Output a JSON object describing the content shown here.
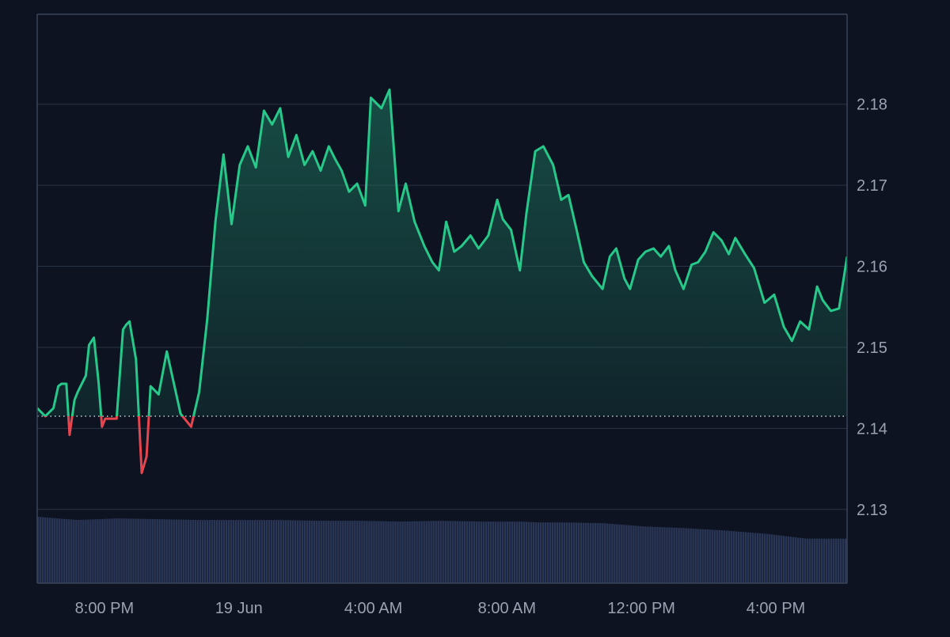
{
  "colors": {
    "background": "#0d1320",
    "grid": "#2b3444",
    "axis_border": "#3a4456",
    "tick_label": "#9aa3b2",
    "line_up": "#26c98a",
    "line_down": "#e5454f",
    "area_fill": "#1c6b57",
    "volume": "#2a3656",
    "baseline": "#c9ced8"
  },
  "chart_data": {
    "type": "area",
    "grid": true,
    "baseline_value": 2.1415,
    "ylim": [
      2.1209,
      2.1911
    ],
    "xlim": [
      0,
      100
    ],
    "y_ticks": [
      2.13,
      2.14,
      2.15,
      2.16,
      2.17,
      2.18
    ],
    "y_tick_labels": [
      "2.13",
      "2.14",
      "2.15",
      "2.16",
      "2.17",
      "2.18"
    ],
    "x_ticks": [
      8.3,
      24.9,
      41.5,
      58.0,
      74.6,
      91.2
    ],
    "x_tick_labels": [
      "8:00 PM",
      "19 Jun",
      "4:00 AM",
      "8:00 AM",
      "12:00 PM",
      "4:00 PM"
    ],
    "price": {
      "x": [
        0,
        1,
        2,
        2.6,
        3,
        3.6,
        4,
        4.6,
        5,
        6,
        6.4,
        7,
        7.6,
        8,
        8.4,
        9,
        9.8,
        10.6,
        11,
        11.4,
        12.2,
        12.9,
        13.5,
        14,
        15,
        16,
        17.7,
        19,
        20,
        21,
        22,
        23,
        24,
        25,
        26,
        27,
        28,
        29,
        30,
        31,
        32,
        33,
        34,
        35,
        36,
        36.8,
        37.6,
        38.5,
        39.5,
        40.5,
        41.2,
        42.5,
        43.5,
        44.6,
        45.5,
        46.6,
        47.8,
        48.8,
        49.6,
        50.5,
        51.5,
        52.4,
        53.5,
        54.5,
        55.7,
        56.8,
        57.5,
        58.5,
        59.6,
        60.4,
        61.5,
        62.5,
        63.7,
        64.7,
        65.6,
        66.6,
        67.5,
        68.5,
        69.8,
        70.7,
        71.5,
        72.5,
        73.2,
        74.2,
        75.1,
        76.1,
        77,
        78,
        78.8,
        79.8,
        80.8,
        81.6,
        82.5,
        83.5,
        84.5,
        85.4,
        86.2,
        87.4,
        88.5,
        89.8,
        91,
        92.2,
        93.2,
        94.2,
        95.3,
        96.3,
        97,
        98,
        99,
        100
      ],
      "y": [
        2.1425,
        2.1415,
        2.1425,
        2.1452,
        2.1455,
        2.1455,
        2.1392,
        2.1435,
        2.1445,
        2.1465,
        2.1503,
        2.1512,
        2.1455,
        2.1402,
        2.1412,
        2.1412,
        2.1412,
        2.1522,
        2.1528,
        2.1532,
        2.1485,
        2.1345,
        2.1365,
        2.1452,
        2.1442,
        2.1495,
        2.1418,
        2.1402,
        2.1445,
        2.1535,
        2.1655,
        2.1738,
        2.1652,
        2.1725,
        2.1748,
        2.1722,
        2.1792,
        2.1775,
        2.1795,
        2.1735,
        2.1762,
        2.1725,
        2.1742,
        2.1718,
        2.1748,
        2.1732,
        2.1718,
        2.1692,
        2.1702,
        2.1675,
        2.1808,
        2.1795,
        2.1818,
        2.1668,
        2.1702,
        2.1655,
        2.1625,
        2.1605,
        2.1595,
        2.1655,
        2.1618,
        2.1625,
        2.1638,
        2.1622,
        2.1638,
        2.1682,
        2.1658,
        2.1645,
        2.1595,
        2.1665,
        2.1742,
        2.1748,
        2.1725,
        2.1682,
        2.1688,
        2.1645,
        2.1605,
        2.1588,
        2.1572,
        2.1612,
        2.1622,
        2.1585,
        2.1572,
        2.1608,
        2.1618,
        2.1622,
        2.1612,
        2.1625,
        2.1595,
        2.1572,
        2.1602,
        2.1605,
        2.1618,
        2.1642,
        2.1632,
        2.1615,
        2.1635,
        2.1615,
        2.1598,
        2.1555,
        2.1565,
        2.1525,
        2.1508,
        2.1532,
        2.1522,
        2.1575,
        2.1558,
        2.1545,
        2.1548,
        2.1612
      ]
    },
    "volume": {
      "x": [
        0,
        5,
        10,
        15,
        20,
        25,
        30,
        35,
        40,
        45,
        50,
        55,
        60,
        62,
        65,
        70,
        75,
        80,
        85,
        90,
        95,
        100
      ],
      "y": [
        2.1291,
        2.1287,
        2.1289,
        2.1288,
        2.1287,
        2.1287,
        2.1287,
        2.1286,
        2.1286,
        2.1285,
        2.1286,
        2.1285,
        2.1285,
        2.1284,
        2.1284,
        2.1283,
        2.1279,
        2.1277,
        2.1274,
        2.127,
        2.1264,
        2.1264
      ]
    }
  }
}
